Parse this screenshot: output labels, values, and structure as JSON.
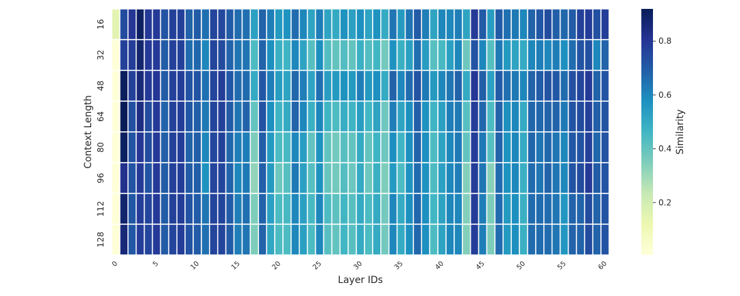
{
  "chart_data": {
    "type": "heatmap",
    "title": "",
    "xlabel": "Layer IDs",
    "ylabel": "Context Length",
    "colorbar_label": "Similarity",
    "colormap": "YlGnBu",
    "color_range": [
      0.005,
      0.92
    ],
    "colorbar_ticks": [
      "0.2",
      "0.4",
      "0.6",
      "0.8"
    ],
    "colorbar_tick_values": [
      0.2,
      0.4,
      0.6,
      0.8
    ],
    "x": [
      0,
      1,
      2,
      3,
      4,
      5,
      6,
      7,
      8,
      9,
      10,
      11,
      12,
      13,
      14,
      15,
      16,
      17,
      18,
      19,
      20,
      21,
      22,
      23,
      24,
      25,
      26,
      27,
      28,
      29,
      30,
      31,
      32,
      33,
      34,
      35,
      36,
      37,
      38,
      39,
      40,
      41,
      42,
      43,
      44,
      45,
      46,
      47,
      48,
      49,
      50,
      51,
      52,
      53,
      54,
      55,
      56,
      57,
      58,
      59,
      60
    ],
    "x_tick_labels": [
      "0",
      "5",
      "10",
      "15",
      "20",
      "25",
      "30",
      "35",
      "40",
      "45",
      "50",
      "55",
      "60"
    ],
    "x_tick_values": [
      0,
      5,
      10,
      15,
      20,
      25,
      30,
      35,
      40,
      45,
      50,
      55,
      60
    ],
    "y_tick_labels": [
      "16",
      "32",
      "48",
      "64",
      "80",
      "96",
      "112",
      "128"
    ],
    "values": [
      [
        0.15,
        0.74,
        0.8,
        0.9,
        0.79,
        0.79,
        0.72,
        0.77,
        0.77,
        0.68,
        0.7,
        0.65,
        0.76,
        0.75,
        0.7,
        0.66,
        0.65,
        0.53,
        0.68,
        0.62,
        0.55,
        0.57,
        0.66,
        0.6,
        0.52,
        0.62,
        0.52,
        0.5,
        0.57,
        0.53,
        0.58,
        0.52,
        0.57,
        0.5,
        0.64,
        0.55,
        0.64,
        0.7,
        0.62,
        0.52,
        0.6,
        0.6,
        0.62,
        0.52,
        0.79,
        0.7,
        0.54,
        0.7,
        0.65,
        0.63,
        0.6,
        0.68,
        0.71,
        0.74,
        0.69,
        0.67,
        0.7,
        0.77,
        0.78,
        0.73,
        0.78
      ],
      [
        0.01,
        0.77,
        0.78,
        0.88,
        0.79,
        0.79,
        0.7,
        0.77,
        0.77,
        0.66,
        0.67,
        0.6,
        0.76,
        0.74,
        0.68,
        0.64,
        0.64,
        0.44,
        0.68,
        0.58,
        0.48,
        0.47,
        0.6,
        0.52,
        0.42,
        0.58,
        0.43,
        0.4,
        0.43,
        0.4,
        0.48,
        0.43,
        0.46,
        0.37,
        0.57,
        0.48,
        0.53,
        0.65,
        0.54,
        0.42,
        0.45,
        0.53,
        0.6,
        0.38,
        0.72,
        0.6,
        0.42,
        0.63,
        0.55,
        0.52,
        0.5,
        0.6,
        0.62,
        0.6,
        0.62,
        0.58,
        0.66,
        0.72,
        0.73,
        0.6,
        0.68
      ],
      [
        0.01,
        0.91,
        0.77,
        0.86,
        0.79,
        0.8,
        0.7,
        0.77,
        0.78,
        0.72,
        0.72,
        0.65,
        0.76,
        0.78,
        0.71,
        0.66,
        0.66,
        0.5,
        0.71,
        0.62,
        0.54,
        0.52,
        0.67,
        0.62,
        0.52,
        0.65,
        0.54,
        0.55,
        0.57,
        0.55,
        0.62,
        0.55,
        0.58,
        0.5,
        0.68,
        0.6,
        0.66,
        0.72,
        0.63,
        0.55,
        0.6,
        0.64,
        0.68,
        0.5,
        0.8,
        0.69,
        0.53,
        0.7,
        0.65,
        0.63,
        0.6,
        0.68,
        0.7,
        0.72,
        0.71,
        0.66,
        0.73,
        0.76,
        0.79,
        0.68,
        0.72
      ],
      [
        0.01,
        0.92,
        0.73,
        0.84,
        0.74,
        0.79,
        0.68,
        0.77,
        0.78,
        0.71,
        0.69,
        0.63,
        0.76,
        0.77,
        0.7,
        0.64,
        0.68,
        0.4,
        0.72,
        0.58,
        0.47,
        0.5,
        0.68,
        0.6,
        0.48,
        0.6,
        0.47,
        0.44,
        0.49,
        0.47,
        0.54,
        0.46,
        0.52,
        0.38,
        0.62,
        0.52,
        0.58,
        0.69,
        0.57,
        0.47,
        0.53,
        0.62,
        0.63,
        0.42,
        0.78,
        0.67,
        0.44,
        0.68,
        0.58,
        0.6,
        0.5,
        0.67,
        0.67,
        0.68,
        0.68,
        0.63,
        0.72,
        0.74,
        0.77,
        0.69,
        0.72
      ],
      [
        0.01,
        0.9,
        0.72,
        0.8,
        0.74,
        0.79,
        0.69,
        0.77,
        0.78,
        0.68,
        0.69,
        0.6,
        0.75,
        0.77,
        0.67,
        0.62,
        0.62,
        0.35,
        0.69,
        0.55,
        0.44,
        0.45,
        0.6,
        0.54,
        0.4,
        0.57,
        0.4,
        0.37,
        0.42,
        0.4,
        0.5,
        0.4,
        0.47,
        0.38,
        0.58,
        0.47,
        0.58,
        0.68,
        0.58,
        0.44,
        0.52,
        0.6,
        0.63,
        0.4,
        0.78,
        0.63,
        0.42,
        0.68,
        0.57,
        0.6,
        0.5,
        0.67,
        0.64,
        0.67,
        0.64,
        0.6,
        0.71,
        0.72,
        0.77,
        0.67,
        0.72
      ],
      [
        0.01,
        0.82,
        0.72,
        0.79,
        0.72,
        0.79,
        0.7,
        0.77,
        0.78,
        0.7,
        0.69,
        0.57,
        0.76,
        0.76,
        0.68,
        0.6,
        0.63,
        0.32,
        0.69,
        0.55,
        0.38,
        0.42,
        0.63,
        0.53,
        0.42,
        0.57,
        0.39,
        0.37,
        0.43,
        0.38,
        0.5,
        0.38,
        0.48,
        0.35,
        0.55,
        0.44,
        0.57,
        0.66,
        0.57,
        0.44,
        0.53,
        0.6,
        0.62,
        0.34,
        0.78,
        0.64,
        0.33,
        0.66,
        0.57,
        0.6,
        0.48,
        0.66,
        0.64,
        0.68,
        0.64,
        0.6,
        0.72,
        0.74,
        0.79,
        0.7,
        0.72
      ],
      [
        0.01,
        0.88,
        0.71,
        0.78,
        0.76,
        0.79,
        0.7,
        0.77,
        0.78,
        0.72,
        0.7,
        0.64,
        0.76,
        0.76,
        0.7,
        0.62,
        0.65,
        0.35,
        0.68,
        0.53,
        0.44,
        0.45,
        0.6,
        0.53,
        0.45,
        0.6,
        0.44,
        0.41,
        0.46,
        0.42,
        0.5,
        0.44,
        0.5,
        0.37,
        0.6,
        0.5,
        0.58,
        0.67,
        0.58,
        0.46,
        0.52,
        0.6,
        0.6,
        0.34,
        0.78,
        0.62,
        0.35,
        0.66,
        0.55,
        0.58,
        0.48,
        0.66,
        0.66,
        0.66,
        0.64,
        0.56,
        0.68,
        0.68,
        0.74,
        0.68,
        0.72
      ],
      [
        0.01,
        0.86,
        0.71,
        0.78,
        0.76,
        0.79,
        0.7,
        0.76,
        0.78,
        0.72,
        0.7,
        0.65,
        0.76,
        0.76,
        0.7,
        0.62,
        0.64,
        0.35,
        0.68,
        0.51,
        0.44,
        0.44,
        0.6,
        0.53,
        0.44,
        0.6,
        0.42,
        0.4,
        0.46,
        0.42,
        0.5,
        0.44,
        0.5,
        0.37,
        0.6,
        0.5,
        0.58,
        0.67,
        0.58,
        0.44,
        0.52,
        0.6,
        0.6,
        0.34,
        0.78,
        0.62,
        0.35,
        0.66,
        0.55,
        0.58,
        0.48,
        0.66,
        0.66,
        0.66,
        0.64,
        0.56,
        0.68,
        0.68,
        0.74,
        0.68,
        0.72
      ]
    ],
    "grid": false,
    "legend": "colorbar-right"
  }
}
